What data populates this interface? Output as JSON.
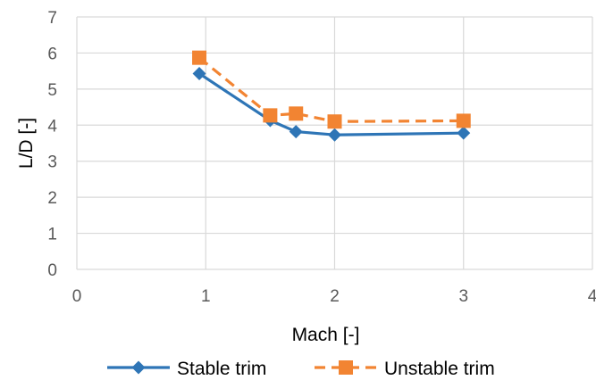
{
  "chart_data": {
    "type": "line",
    "title": "",
    "xlabel": "Mach [-]",
    "ylabel": "L/D [-]",
    "xlim": [
      0,
      4
    ],
    "ylim": [
      0,
      7
    ],
    "xticks": [
      0,
      1,
      2,
      3,
      4
    ],
    "yticks": [
      0,
      1,
      2,
      3,
      4,
      5,
      6,
      7
    ],
    "grid": true,
    "legend_position": "bottom",
    "series": [
      {
        "name": "Stable trim",
        "color": "#2E75B6",
        "line_style": "solid",
        "marker": "diamond",
        "x": [
          0.95,
          1.5,
          1.7,
          2.0,
          3.0
        ],
        "y": [
          5.43,
          4.13,
          3.82,
          3.73,
          3.78
        ]
      },
      {
        "name": "Unstable trim",
        "color": "#F28432",
        "line_style": "dashed",
        "marker": "square",
        "x": [
          0.95,
          1.5,
          1.7,
          2.0,
          3.0
        ],
        "y": [
          5.87,
          4.27,
          4.32,
          4.1,
          4.12
        ]
      }
    ]
  }
}
